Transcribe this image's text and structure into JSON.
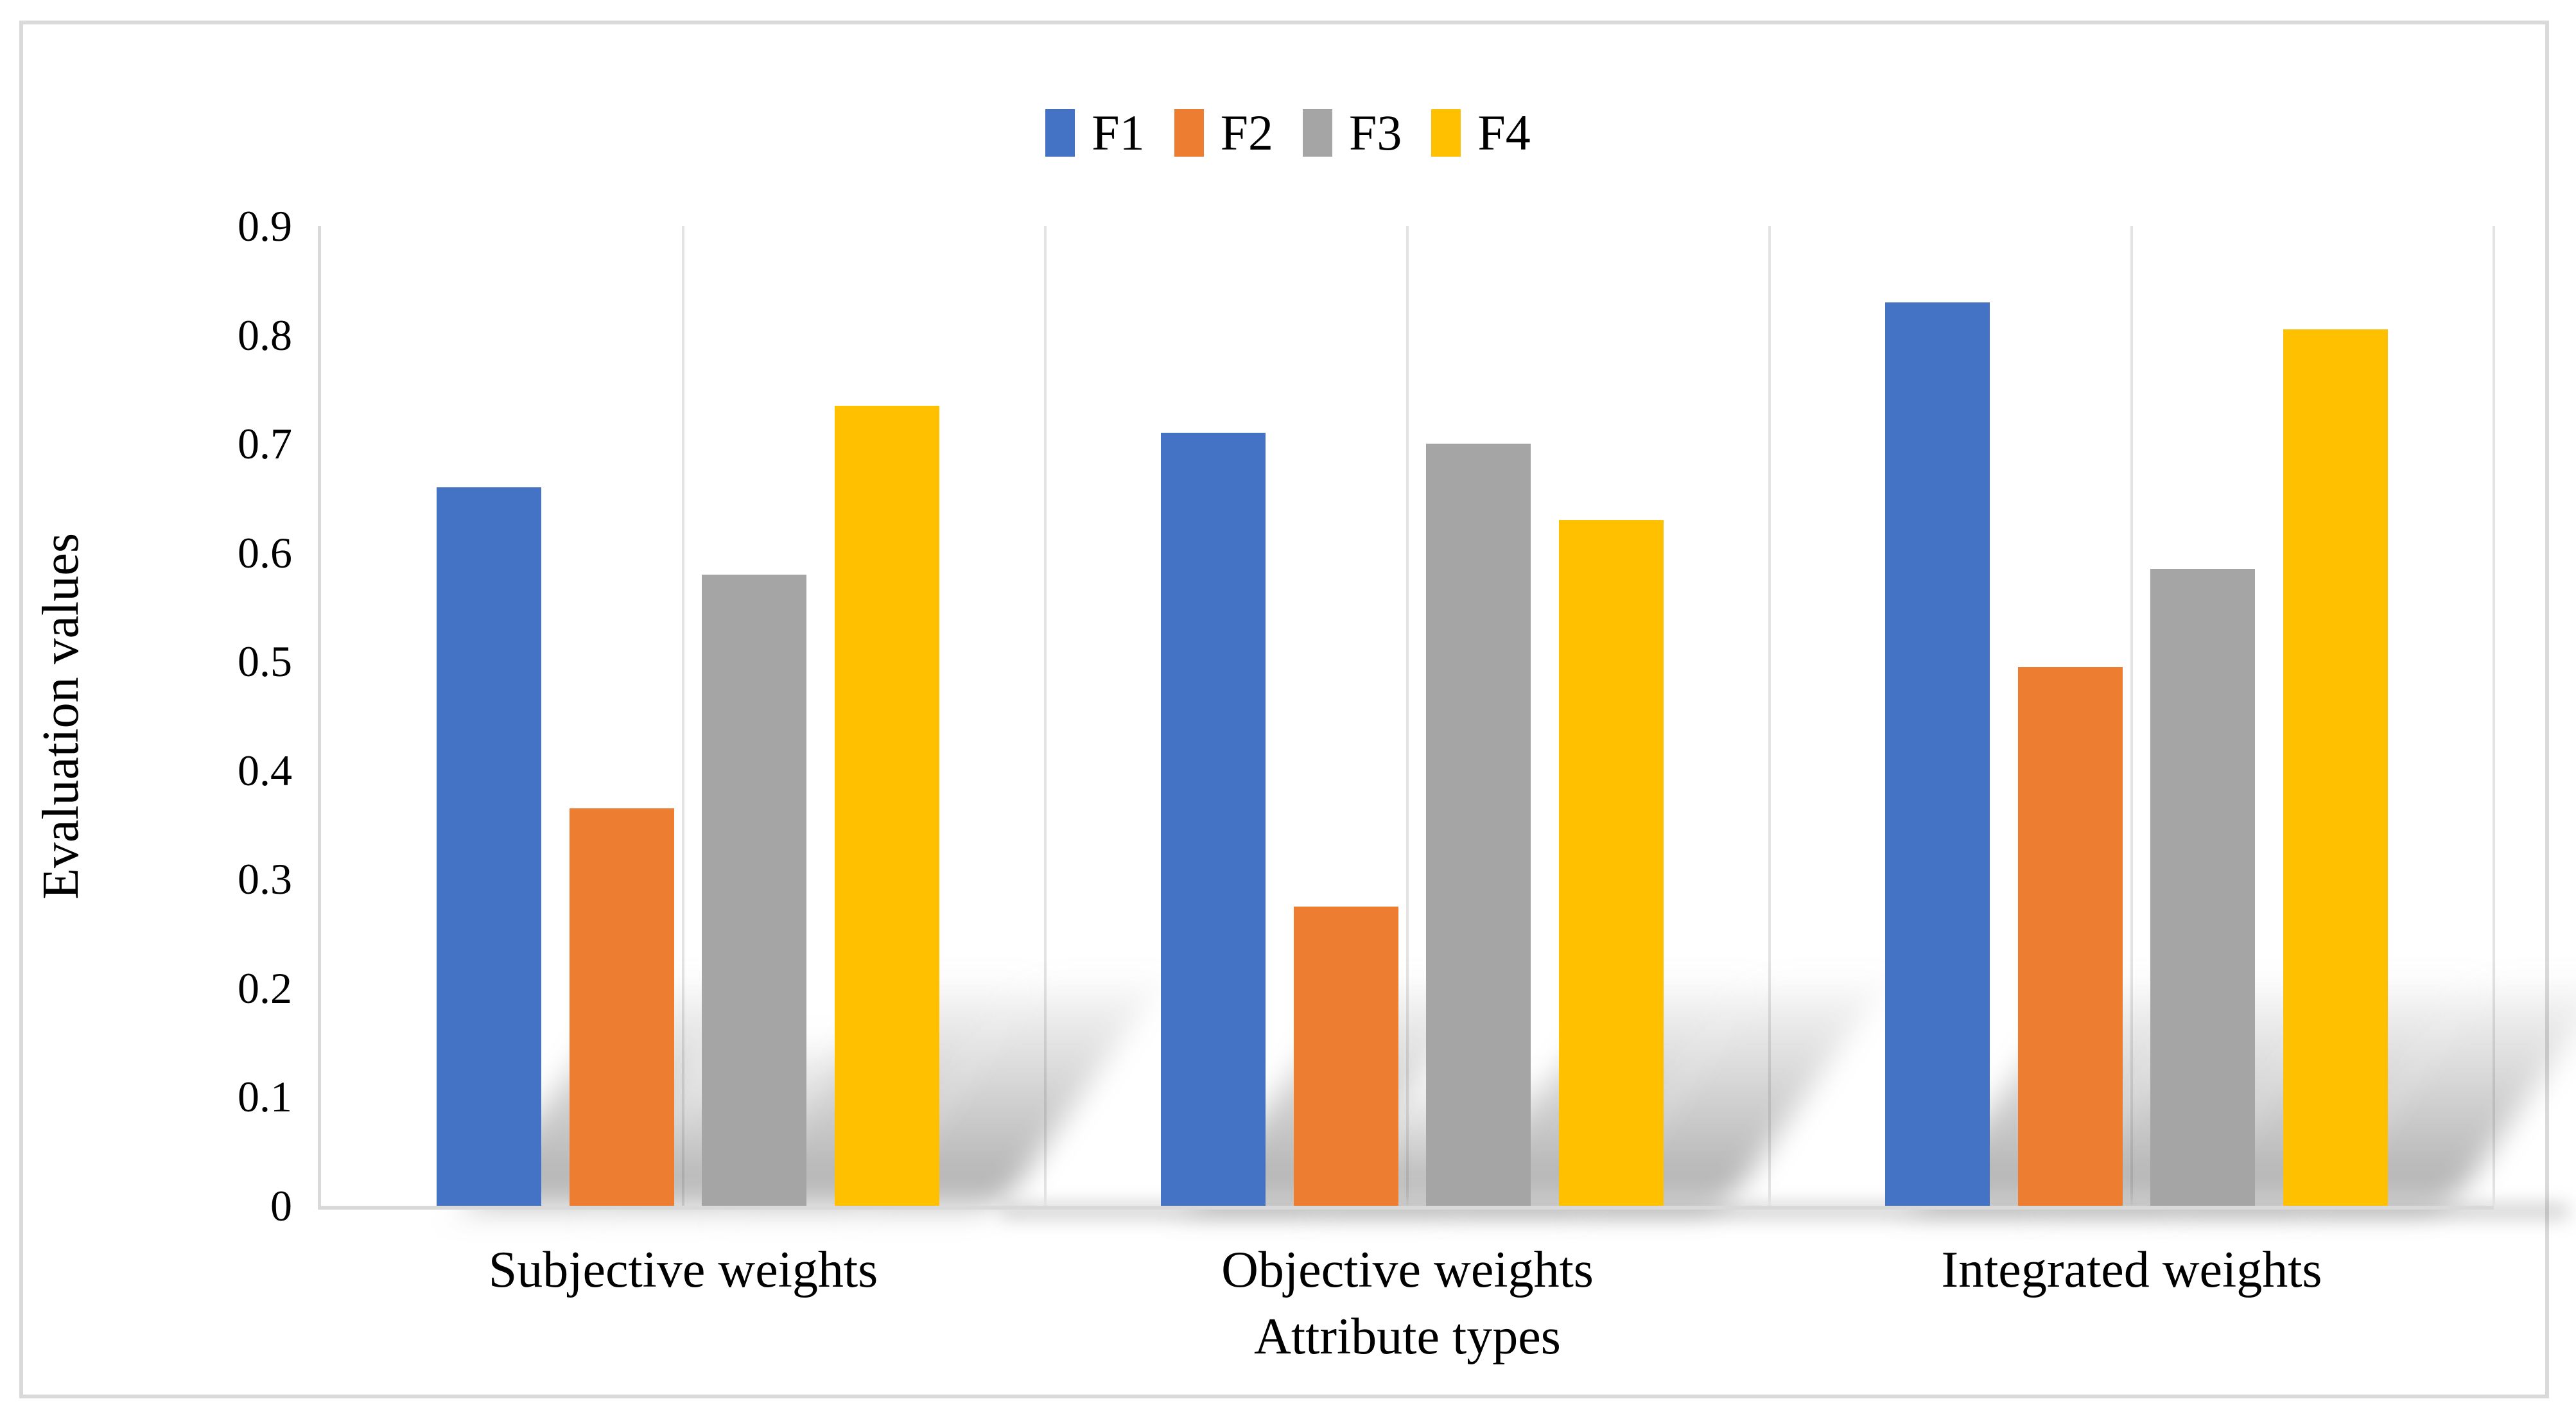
{
  "figure": {
    "background_color": "#FFFFFF",
    "border_color": "#DADADA"
  },
  "chart_data": {
    "type": "bar",
    "title": "",
    "categories": [
      "Subjective weights",
      "Objective weights",
      "Integrated weights"
    ],
    "series": [
      {
        "name": "F1",
        "color": "#4472C4",
        "values": [
          0.66,
          0.71,
          0.83
        ]
      },
      {
        "name": "F2",
        "color": "#ED7D31",
        "values": [
          0.365,
          0.275,
          0.495
        ]
      },
      {
        "name": "F3",
        "color": "#A5A5A5",
        "values": [
          0.58,
          0.7,
          0.585
        ]
      },
      {
        "name": "F4",
        "color": "#FFC000",
        "values": [
          0.735,
          0.63,
          0.805
        ]
      }
    ],
    "xlabel": "Attribute types",
    "ylabel": "Evaluation values",
    "ylim": [
      0,
      0.9
    ],
    "ytick_labels": [
      "0",
      "0.1",
      "0.2",
      "0.3",
      "0.4",
      "0.5",
      "0.6",
      "0.7",
      "0.8",
      "0.9"
    ],
    "legend_position": "top-center",
    "grid": "vertical gridlines at half-category intervals",
    "axis_color": "#D9D9D9",
    "gridline_color": "#E3E3E3",
    "bar_effect": "soft diagonal perspective shadow behind bars"
  }
}
